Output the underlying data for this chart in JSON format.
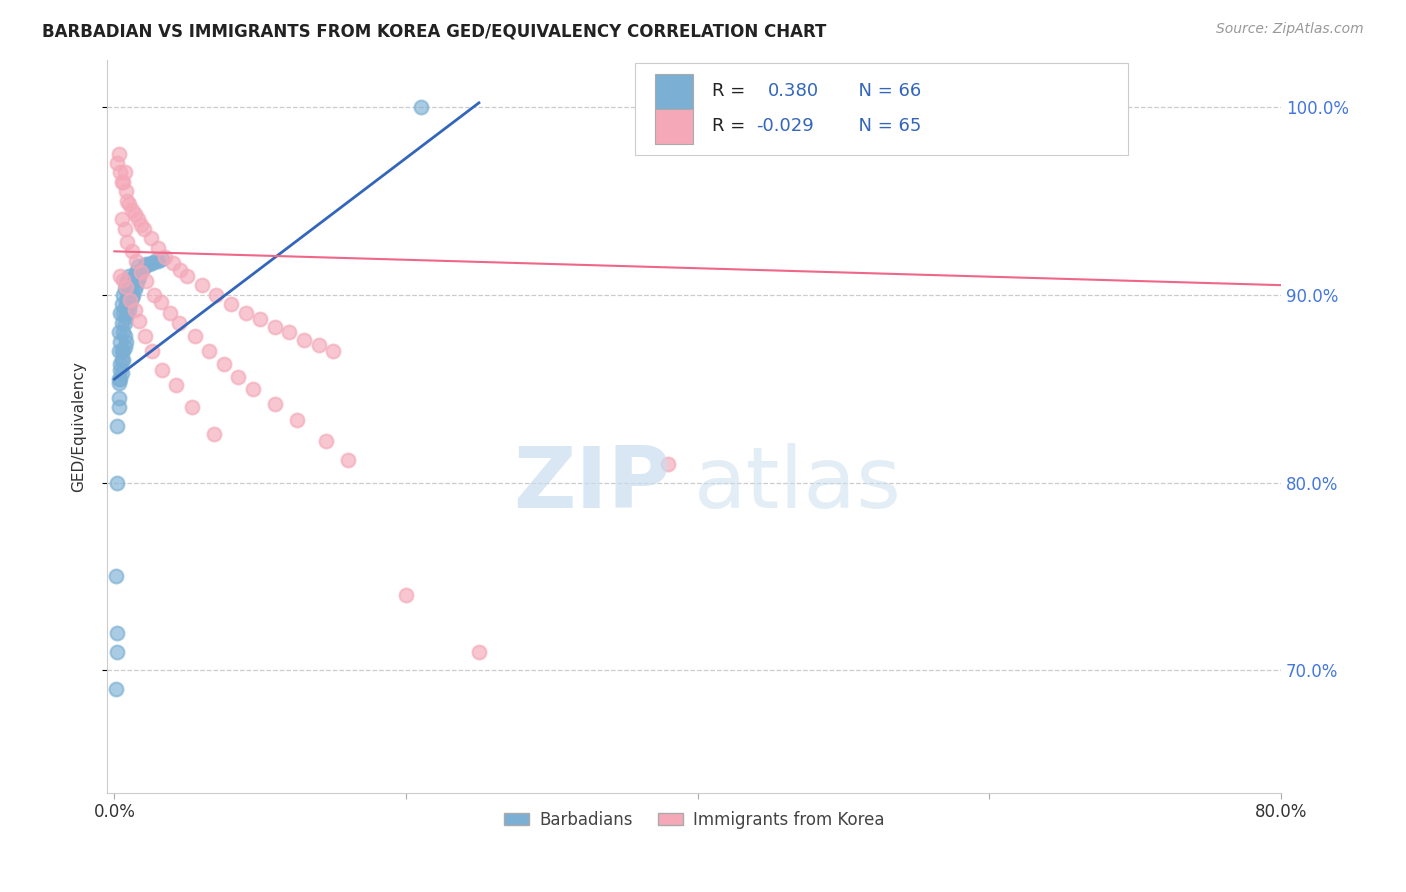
{
  "title": "BARBADIAN VS IMMIGRANTS FROM KOREA GED/EQUIVALENCY CORRELATION CHART",
  "source": "Source: ZipAtlas.com",
  "ylabel": "GED/Equivalency",
  "ytick_labels": [
    "70.0%",
    "80.0%",
    "90.0%",
    "100.0%"
  ],
  "ytick_values": [
    0.7,
    0.8,
    0.9,
    1.0
  ],
  "legend_label1": "Barbadians",
  "legend_label2": "Immigrants from Korea",
  "blue_color": "#7BAFD4",
  "pink_color": "#F4A8B8",
  "blue_line_color": "#3366BB",
  "pink_line_color": "#EE6688",
  "watermark_zip": "ZIP",
  "watermark_atlas": "atlas",
  "blue_scatter_x": [
    0.001,
    0.002,
    0.002,
    0.003,
    0.003,
    0.003,
    0.004,
    0.004,
    0.004,
    0.005,
    0.005,
    0.005,
    0.006,
    0.006,
    0.006,
    0.007,
    0.007,
    0.007,
    0.008,
    0.008,
    0.008,
    0.009,
    0.009,
    0.009,
    0.01,
    0.01,
    0.01,
    0.011,
    0.011,
    0.012,
    0.012,
    0.013,
    0.013,
    0.014,
    0.014,
    0.015,
    0.015,
    0.016,
    0.016,
    0.017,
    0.018,
    0.019,
    0.02,
    0.021,
    0.022,
    0.024,
    0.026,
    0.028,
    0.03,
    0.033,
    0.002,
    0.003,
    0.004,
    0.005,
    0.006,
    0.007,
    0.008,
    0.003,
    0.004,
    0.005,
    0.006,
    0.007,
    0.003,
    0.21,
    0.001,
    0.002
  ],
  "blue_scatter_y": [
    0.75,
    0.72,
    0.8,
    0.84,
    0.87,
    0.88,
    0.86,
    0.875,
    0.89,
    0.87,
    0.885,
    0.895,
    0.88,
    0.89,
    0.9,
    0.885,
    0.893,
    0.903,
    0.888,
    0.895,
    0.906,
    0.89,
    0.898,
    0.908,
    0.892,
    0.9,
    0.91,
    0.895,
    0.903,
    0.898,
    0.905,
    0.9,
    0.907,
    0.903,
    0.91,
    0.905,
    0.912,
    0.908,
    0.915,
    0.91,
    0.912,
    0.913,
    0.915,
    0.915,
    0.916,
    0.916,
    0.917,
    0.918,
    0.918,
    0.919,
    0.83,
    0.853,
    0.863,
    0.858,
    0.865,
    0.872,
    0.875,
    0.845,
    0.855,
    0.865,
    0.87,
    0.878,
    0.855,
    1.0,
    0.69,
    0.71
  ],
  "pink_scatter_x": [
    0.002,
    0.003,
    0.004,
    0.005,
    0.006,
    0.007,
    0.008,
    0.009,
    0.01,
    0.012,
    0.014,
    0.016,
    0.018,
    0.02,
    0.025,
    0.03,
    0.035,
    0.04,
    0.045,
    0.05,
    0.06,
    0.07,
    0.08,
    0.09,
    0.1,
    0.11,
    0.12,
    0.13,
    0.14,
    0.15,
    0.005,
    0.007,
    0.009,
    0.012,
    0.015,
    0.018,
    0.022,
    0.027,
    0.032,
    0.038,
    0.044,
    0.055,
    0.065,
    0.075,
    0.085,
    0.095,
    0.11,
    0.125,
    0.145,
    0.16,
    0.004,
    0.006,
    0.008,
    0.011,
    0.014,
    0.017,
    0.021,
    0.026,
    0.033,
    0.042,
    0.053,
    0.068,
    0.38,
    0.2,
    0.25
  ],
  "pink_scatter_y": [
    0.97,
    0.975,
    0.965,
    0.96,
    0.96,
    0.965,
    0.955,
    0.95,
    0.948,
    0.945,
    0.943,
    0.94,
    0.937,
    0.935,
    0.93,
    0.925,
    0.92,
    0.917,
    0.913,
    0.91,
    0.905,
    0.9,
    0.895,
    0.89,
    0.887,
    0.883,
    0.88,
    0.876,
    0.873,
    0.87,
    0.94,
    0.935,
    0.928,
    0.923,
    0.918,
    0.912,
    0.907,
    0.9,
    0.896,
    0.89,
    0.885,
    0.878,
    0.87,
    0.863,
    0.856,
    0.85,
    0.842,
    0.833,
    0.822,
    0.812,
    0.91,
    0.908,
    0.904,
    0.897,
    0.892,
    0.886,
    0.878,
    0.87,
    0.86,
    0.852,
    0.84,
    0.826,
    0.81,
    0.74,
    0.71
  ]
}
